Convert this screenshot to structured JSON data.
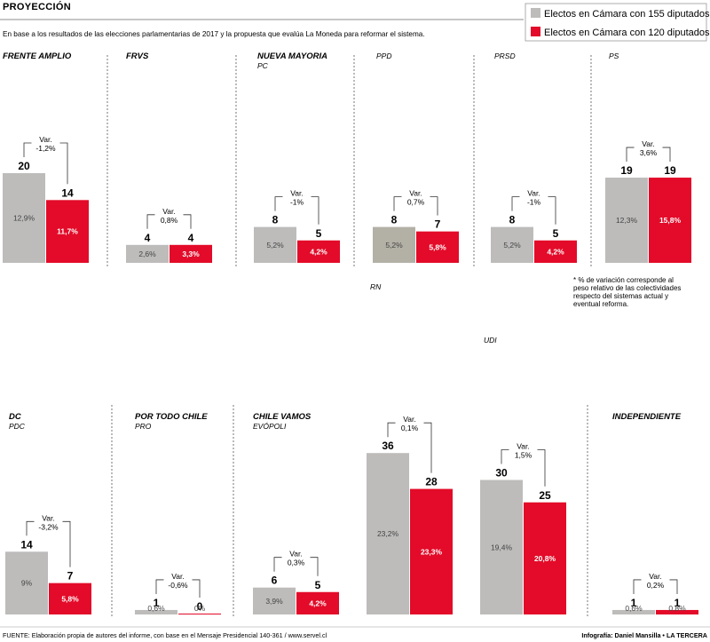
{
  "header": {
    "title": "PROYECCIÓN",
    "subtitle": "En base a los resultados de las elecciones parlamentarias de 2017 y la propuesta que evalúa La Moneda para reformar el sistema."
  },
  "legend": [
    {
      "label": "Electos en Cámara con 155 diputados",
      "color": "#bdbcbb"
    },
    {
      "label": "Electos en Cámara con 120 diputados",
      "color": "#e30b29"
    }
  ],
  "note": "* % de variación corresponde al peso relativo de las colectividades respecto del sistemas actual y eventual reforma.",
  "footer": {
    "source": "FUENTE: Elaboración propia de autores del informe, con base en el Mensaje Presidencial 140-361 / www.servel.cl",
    "credit": "Infografía: Daniel Mansilla • LA TERCERA"
  },
  "colors": {
    "gray": "#bdbcbb",
    "red": "#e30b29",
    "darkgray": "#b3b0a6"
  },
  "chart_data": {
    "type": "bar",
    "series": [
      {
        "name": "Electos en Cámara con 155 diputados"
      },
      {
        "name": "Electos en Cámara con 120 diputados"
      }
    ],
    "groups": [
      {
        "group": "FRENTE AMPLIO",
        "party": "",
        "v155": 20,
        "v120": 14,
        "p155": "12,9%",
        "p120": "11,7%",
        "var": "-1,2%"
      },
      {
        "group": "FRVS",
        "party": "",
        "v155": 4,
        "v120": 4,
        "p155": "2,6%",
        "p120": "3,3%",
        "var": "0,8%"
      },
      {
        "group": "NUEVA MAYORIA",
        "party": "PC",
        "v155": 8,
        "v120": 5,
        "p155": "5,2%",
        "p120": "4,2%",
        "var": "-1%"
      },
      {
        "group": "",
        "party": "PPD",
        "v155": 8,
        "v120": 7,
        "p155": "5,2%",
        "p120": "5,8%",
        "var": "0,7%"
      },
      {
        "group": "",
        "party": "PRSD",
        "v155": 8,
        "v120": 5,
        "p155": "5,2%",
        "p120": "4,2%",
        "var": "-1%"
      },
      {
        "group": "",
        "party": "PS",
        "v155": 19,
        "v120": 19,
        "p155": "12,3%",
        "p120": "15,8%",
        "var": "3,6%"
      },
      {
        "group": "DC",
        "party": "PDC",
        "v155": 14,
        "v120": 7,
        "p155": "9%",
        "p120": "5,8%",
        "var": "-3,2%"
      },
      {
        "group": "POR TODO CHILE",
        "party": "PRO",
        "v155": 1,
        "v120": 0,
        "p155": "0,6%",
        "p120": "0%",
        "var": "-0,6%"
      },
      {
        "group": "CHILE VAMOS",
        "party": "EVÓPOLI",
        "v155": 6,
        "v120": 5,
        "p155": "3,9%",
        "p120": "4,2%",
        "var": "0,3%"
      },
      {
        "group": "",
        "party": "RN",
        "v155": 36,
        "v120": 28,
        "p155": "23,2%",
        "p120": "23,3%",
        "var": "0,1%"
      },
      {
        "group": "",
        "party": "UDI",
        "v155": 30,
        "v120": 25,
        "p155": "19,4%",
        "p120": "20,8%",
        "var": "1,5%"
      },
      {
        "group": "INDEPENDIENTE",
        "party": "",
        "v155": 1,
        "v120": 1,
        "p155": "0,6%",
        "p120": "0,8%",
        "var": "0,2%"
      }
    ],
    "var_prefix": "Var.",
    "xlabel": "",
    "ylabel": ""
  }
}
